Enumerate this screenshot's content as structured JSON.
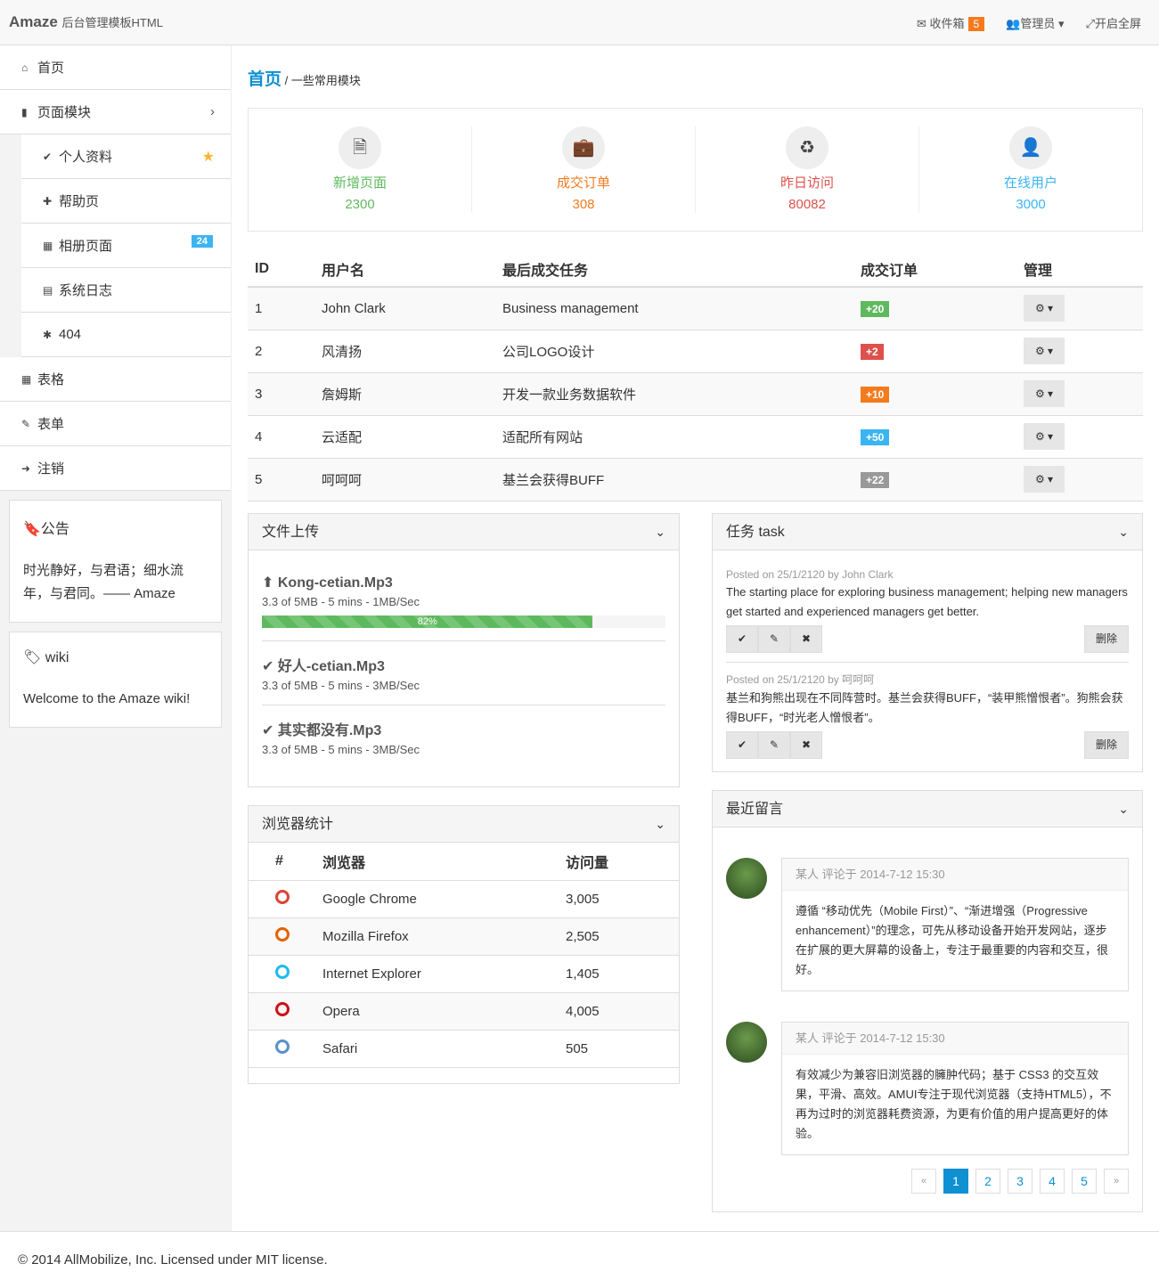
{
  "header": {
    "brand": "Amaze",
    "subtitle": "后台管理模板HTML",
    "inbox": "收件箱",
    "inbox_count": "5",
    "admin": "管理员",
    "fullscreen": "开启全屏"
  },
  "sidebar": {
    "items": [
      {
        "label": "首页",
        "icon": "home"
      },
      {
        "label": "页面模块",
        "icon": "file"
      },
      {
        "label": "个人资料",
        "icon": "check"
      },
      {
        "label": "帮助页",
        "icon": "puzzle"
      },
      {
        "label": "相册页面",
        "icon": "th",
        "badge": "24"
      },
      {
        "label": "系统日志",
        "icon": "calendar"
      },
      {
        "label": "404",
        "icon": "bug"
      },
      {
        "label": "表格",
        "icon": "table"
      },
      {
        "label": "表单",
        "icon": "edit"
      },
      {
        "label": "注销",
        "icon": "sign-out"
      }
    ],
    "notice": {
      "title": "公告",
      "text": "时光静好，与君语；细水流年，与君同。—— Amaze"
    },
    "wiki": {
      "title": "wiki",
      "text": "Welcome to the Amaze wiki!"
    }
  },
  "breadcrumb": {
    "home": "首页",
    "current": "一些常用模块"
  },
  "stats": [
    {
      "label": "新增页面",
      "value": "2300",
      "color": "#5eb95e",
      "icon": "file-text"
    },
    {
      "label": "成交订单",
      "value": "308",
      "color": "#f37b1d",
      "icon": "briefcase"
    },
    {
      "label": "昨日访问",
      "value": "80082",
      "color": "#dd514c",
      "icon": "recycle"
    },
    {
      "label": "在线用户",
      "value": "3000",
      "color": "#3bb4f2",
      "icon": "user-md"
    }
  ],
  "table": {
    "headers": [
      "ID",
      "用户名",
      "最后成交任务",
      "成交订单",
      "管理"
    ],
    "rows": [
      {
        "id": "1",
        "user": "John Clark",
        "task": "Business management",
        "orders": "+20",
        "color": "#5eb95e"
      },
      {
        "id": "2",
        "user": "风清扬",
        "task": "公司LOGO设计",
        "orders": "+2",
        "color": "#dd514c"
      },
      {
        "id": "3",
        "user": "詹姆斯",
        "task": "开发一款业务数据软件",
        "orders": "+10",
        "color": "#f37b1d"
      },
      {
        "id": "4",
        "user": "云适配",
        "task": "适配所有网站",
        "orders": "+50",
        "color": "#3bb4f2"
      },
      {
        "id": "5",
        "user": "呵呵呵",
        "task": "基兰会获得BUFF",
        "orders": "+22",
        "color": "#999999"
      }
    ]
  },
  "upload": {
    "title": "文件上传",
    "files": [
      {
        "name": "Kong-cetian.Mp3",
        "meta": "3.3 of 5MB - 5 mins - 1MB/Sec",
        "progress": 82,
        "progress_label": "82%",
        "icon": "upload"
      },
      {
        "name": "好人-cetian.Mp3",
        "meta": "3.3 of 5MB - 5 mins - 3MB/Sec",
        "icon": "check"
      },
      {
        "name": "其实都没有.Mp3",
        "meta": "3.3 of 5MB - 5 mins - 3MB/Sec",
        "icon": "check"
      }
    ]
  },
  "tasks": {
    "title": "任务 task",
    "delete_label": "删除",
    "items": [
      {
        "meta": "Posted on 25/1/2120 by John Clark",
        "text": "The starting place for exploring business management; helping new managers get started and experienced managers get better."
      },
      {
        "meta": "Posted on 25/1/2120 by 呵呵呵",
        "text": "基兰和狗熊出现在不同阵营时。基兰会获得BUFF，“装甲熊憎恨者”。狗熊会获得BUFF，“时光老人憎恨者”。"
      }
    ]
  },
  "browsers": {
    "title": "浏览器统计",
    "headers": [
      "#",
      "浏览器",
      "访问量"
    ],
    "rows": [
      {
        "name": "Google Chrome",
        "visits": "3,005",
        "color": "#db4437"
      },
      {
        "name": "Mozilla Firefox",
        "visits": "2,505",
        "color": "#e66000"
      },
      {
        "name": "Internet Explorer",
        "visits": "1,405",
        "color": "#1ebbee"
      },
      {
        "name": "Opera",
        "visits": "4,005",
        "color": "#cc0f16"
      },
      {
        "name": "Safari",
        "visits": "505",
        "color": "#5b8fc7"
      }
    ]
  },
  "comments": {
    "title": "最近留言",
    "items": [
      {
        "head": "某人 评论于 2014-7-12 15:30",
        "text": "遵循 “移动优先（Mobile First）”、“渐进增强（Progressive enhancement）”的理念，可先从移动设备开始开发网站，逐步在扩展的更大屏幕的设备上，专注于最重要的内容和交互，很好。"
      },
      {
        "head": "某人 评论于 2014-7-12 15:30",
        "text": "有效减少为兼容旧浏览器的臃肿代码；基于 CSS3 的交互效果，平滑、高效。AMUI专注于现代浏览器（支持HTML5），不再为过时的浏览器耗费资源，为更有价值的用户提高更好的体验。"
      }
    ],
    "pagination": {
      "prev": "«",
      "pages": [
        "1",
        "2",
        "3",
        "4",
        "5"
      ],
      "active": "1",
      "next": "»"
    }
  },
  "footer": "© 2014 AllMobilize, Inc. Licensed under MIT license."
}
